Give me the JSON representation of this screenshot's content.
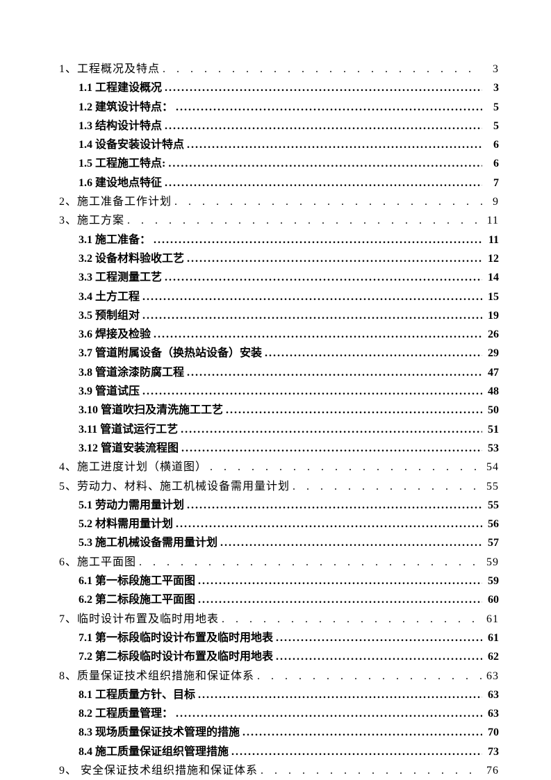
{
  "document": {
    "type": "table-of-contents",
    "background_color": "#ffffff",
    "text_color": "#000000",
    "font_family": "SimSun",
    "base_fontsize": 16,
    "leader_char_l1": ". ",
    "leader_char_l2": "."
  },
  "entries": [
    {
      "level": 1,
      "label": "1、工程概况及特点",
      "page": "3"
    },
    {
      "level": 2,
      "label": "1.1 工程建设概况",
      "page": "3"
    },
    {
      "level": 2,
      "label": "1.2 建筑设计特点：",
      "page": "5"
    },
    {
      "level": 2,
      "label": "1.3 结构设计特点",
      "page": "5"
    },
    {
      "level": 2,
      "label": "1.4 设备安装设计特点",
      "page": "6"
    },
    {
      "level": 2,
      "label": "1.5 工程施工特点:",
      "page": "6"
    },
    {
      "level": 2,
      "label": "1.6 建设地点特征",
      "page": "7"
    },
    {
      "level": 1,
      "label": "2、施工准备工作计划",
      "page": "9"
    },
    {
      "level": 1,
      "label": "3、施工方案",
      "page": "11"
    },
    {
      "level": 2,
      "label": "3.1 施工准备：",
      "page": "11"
    },
    {
      "level": 2,
      "label": "3.2 设备材料验收工艺",
      "page": "12"
    },
    {
      "level": 2,
      "label": "3.3 工程测量工艺",
      "page": "14"
    },
    {
      "level": 2,
      "label": "3.4 土方工程",
      "page": "15"
    },
    {
      "level": 2,
      "label": "3.5 预制组对",
      "page": "19"
    },
    {
      "level": 2,
      "label": "3.6 焊接及检验",
      "page": "26"
    },
    {
      "level": 2,
      "label": "3.7 管道附属设备（换热站设备）安装",
      "page": "29"
    },
    {
      "level": 2,
      "label": "3.8 管道涂漆防腐工程",
      "page": "47"
    },
    {
      "level": 2,
      "label": "3.9 管道试压",
      "page": "48"
    },
    {
      "level": 2,
      "label": "3.10 管道吹扫及清洗施工工艺",
      "page": "50"
    },
    {
      "level": 2,
      "label": "3.11 管道试运行工艺",
      "page": "51"
    },
    {
      "level": 2,
      "label": "3.12 管道安装流程图",
      "page": "53"
    },
    {
      "level": 1,
      "label": "4、施工进度计划（横道图）",
      "page": "54"
    },
    {
      "level": 1,
      "label": "5、劳动力、材料、施工机械设备需用量计划",
      "page": "55"
    },
    {
      "level": 2,
      "label": "5.1 劳动力需用量计划",
      "page": "55"
    },
    {
      "level": 2,
      "label": "5.2 材料需用量计划",
      "page": "56"
    },
    {
      "level": 2,
      "label": "5.3 施工机械设备需用量计划",
      "page": "57"
    },
    {
      "level": 1,
      "label": "6、施工平面图",
      "page": "59"
    },
    {
      "level": 2,
      "label": "6.1 第一标段施工平面图",
      "page": "59"
    },
    {
      "level": 2,
      "label": "6.2 第二标段施工平面图",
      "page": "60"
    },
    {
      "level": 1,
      "label": "7、临时设计布置及临时用地表",
      "page": "61"
    },
    {
      "level": 2,
      "label": "7.1 第一标段临时设计布置及临时用地表",
      "page": "61"
    },
    {
      "level": 2,
      "label": "7.2 第二标段临时设计布置及临时用地表",
      "page": "62"
    },
    {
      "level": 1,
      "label": "8、质量保证技术组织措施和保证体系",
      "page": "63"
    },
    {
      "level": 2,
      "label": "8.1 工程质量方针、目标",
      "page": "63"
    },
    {
      "level": 2,
      "label": "8.2 工程质量管理：",
      "page": "63"
    },
    {
      "level": 2,
      "label": "8.3 现场质量保证技术管理的措施",
      "page": "70"
    },
    {
      "level": 2,
      "label": "8.4 施工质量保证组织管理措施",
      "page": "73"
    },
    {
      "level": 1,
      "label": "9、 安全保证技术组织措施和保证体系",
      "page": "76"
    }
  ]
}
